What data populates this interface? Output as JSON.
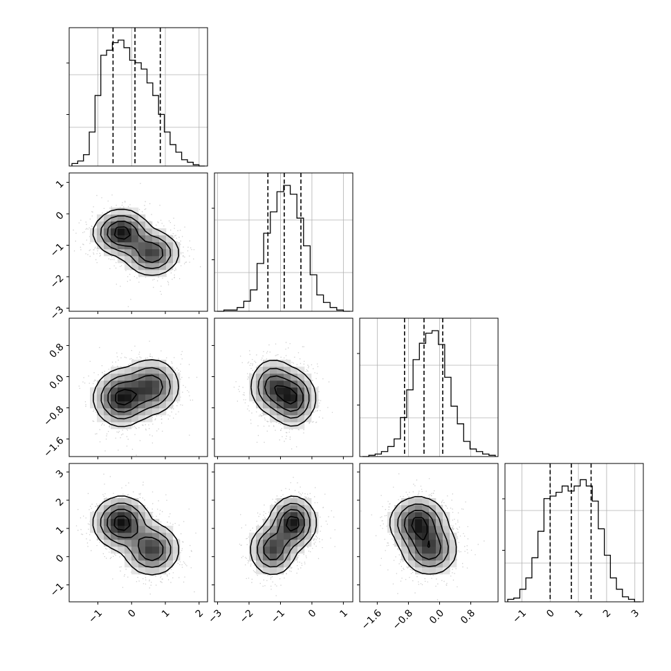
{
  "chart_data": {
    "type": "corner",
    "parameters": 4,
    "quantiles": [
      0.16,
      0.5,
      0.84
    ],
    "ranges": [
      [
        -1.85,
        2.25
      ],
      [
        -3.1,
        1.3
      ],
      [
        -2.05,
        1.5
      ],
      [
        -1.6,
        3.3
      ]
    ],
    "ticks": [
      {
        "values": [
          -1,
          0,
          1,
          2
        ],
        "labels": [
          "−1",
          "0",
          "1",
          "2"
        ]
      },
      {
        "values": [
          -3,
          -2,
          -1,
          0,
          1
        ],
        "labels": [
          "−3",
          "−2",
          "−1",
          "0",
          "1"
        ]
      },
      {
        "values": [
          -1.6,
          -0.8,
          0.0,
          0.8
        ],
        "labels": [
          "−1.6",
          "−0.8",
          "0.0",
          "0.8"
        ]
      },
      {
        "values": [
          -1,
          0,
          1,
          2,
          3
        ],
        "labels": [
          "−1",
          "0",
          "1",
          "2",
          "3"
        ]
      }
    ],
    "modes": [
      {
        "w": 0.55,
        "mean": [
          -0.3,
          -0.6,
          -0.55,
          1.2
        ],
        "sd": [
          0.4,
          0.35,
          0.35,
          0.45
        ]
      },
      {
        "w": 0.45,
        "mean": [
          0.6,
          -1.25,
          -0.25,
          0.25
        ],
        "sd": [
          0.4,
          0.35,
          0.35,
          0.45
        ]
      }
    ],
    "marginals": [
      {
        "param": 0,
        "q16": -0.55,
        "q50": 0.1,
        "q84": 0.85,
        "heights": [
          0.02,
          0.04,
          0.09,
          0.27,
          0.56,
          0.88,
          0.92,
          0.98,
          1.0,
          0.94,
          0.84,
          0.82,
          0.77,
          0.66,
          0.56,
          0.41,
          0.27,
          0.17,
          0.11,
          0.05,
          0.03,
          0.01,
          0.0
        ]
      },
      {
        "param": 1,
        "q16": -1.4,
        "q50": -0.88,
        "q84": -0.35,
        "heights": [
          0.0,
          0.01,
          0.01,
          0.03,
          0.08,
          0.17,
          0.38,
          0.62,
          0.79,
          0.95,
          1.0,
          0.93,
          0.74,
          0.52,
          0.29,
          0.13,
          0.07,
          0.03,
          0.01,
          0.0
        ]
      },
      {
        "param": 2,
        "q16": -0.9,
        "q50": -0.4,
        "q84": 0.08,
        "heights": [
          0.0,
          0.01,
          0.02,
          0.04,
          0.08,
          0.14,
          0.31,
          0.53,
          0.77,
          0.9,
          0.98,
          1.0,
          0.89,
          0.63,
          0.4,
          0.26,
          0.12,
          0.06,
          0.04,
          0.02,
          0.01
        ]
      },
      {
        "param": 3,
        "q16": 0.0,
        "q50": 0.75,
        "q84": 1.45,
        "heights": [
          0.02,
          0.03,
          0.1,
          0.19,
          0.35,
          0.56,
          0.82,
          0.84,
          0.87,
          0.92,
          0.88,
          0.92,
          0.97,
          0.92,
          0.8,
          0.58,
          0.37,
          0.19,
          0.1,
          0.04,
          0.02,
          0.0
        ]
      }
    ]
  }
}
